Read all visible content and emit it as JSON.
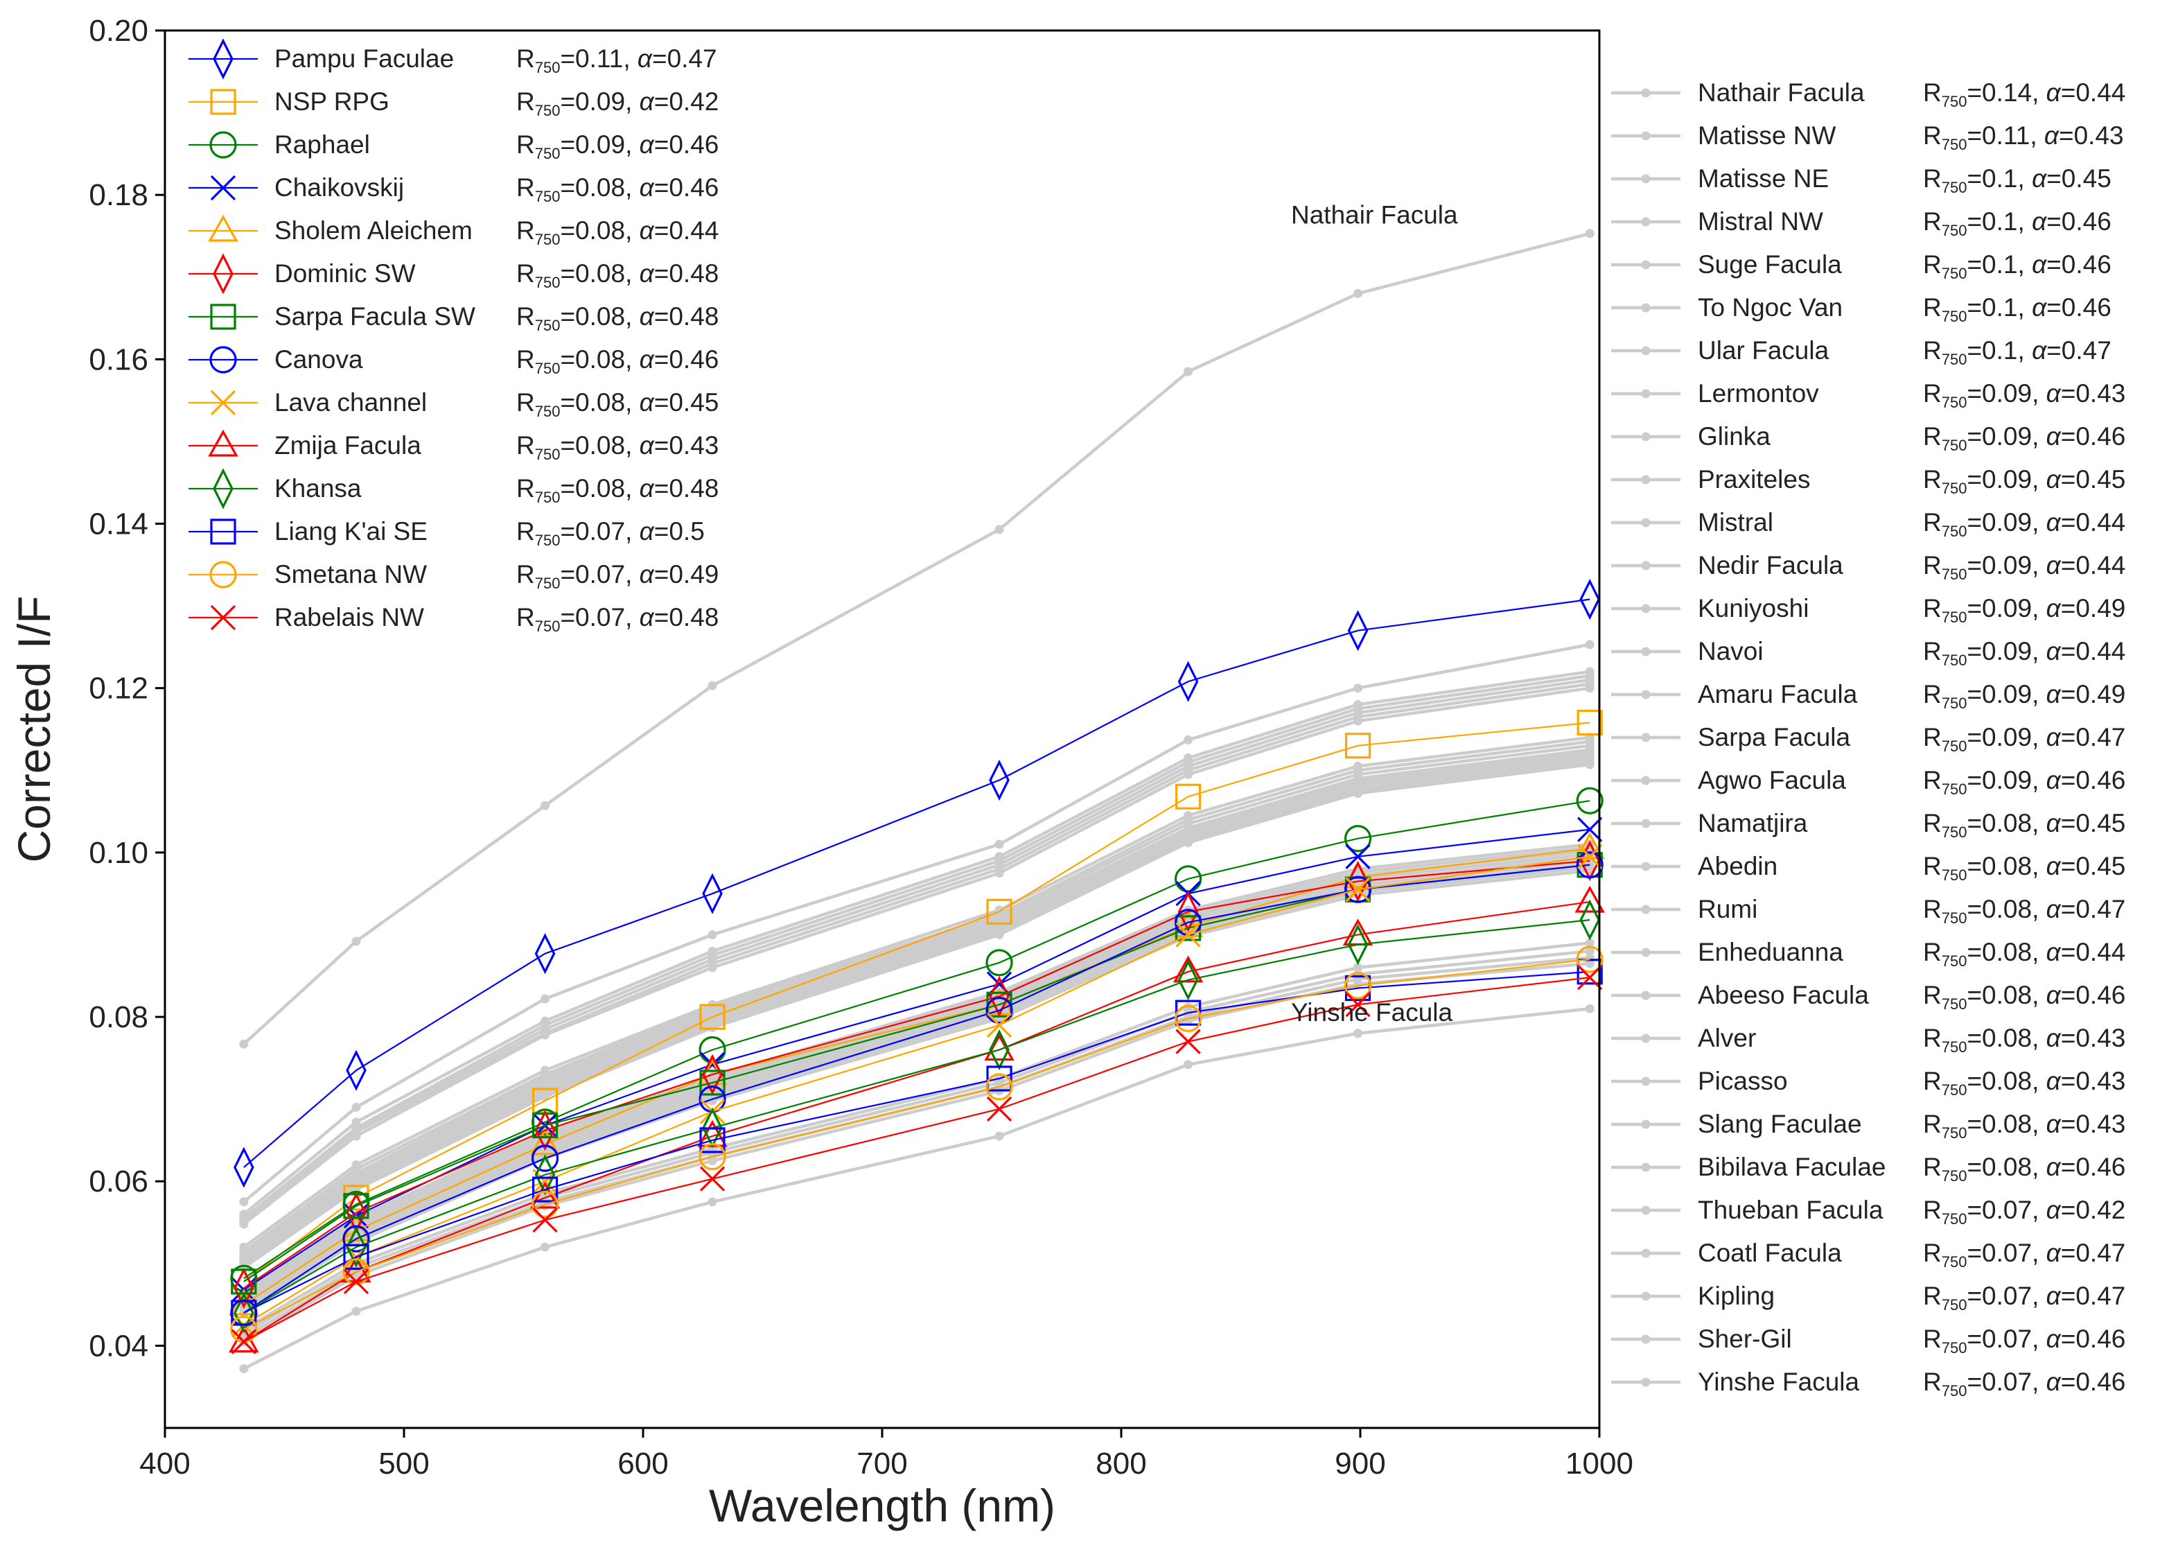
{
  "chart_data": {
    "type": "line",
    "title": "",
    "xlabel": "Wavelength (nm)",
    "ylabel": "Corrected I/F",
    "xlim": [
      400,
      1000
    ],
    "ylim": [
      0.03,
      0.2
    ],
    "x": [
      433,
      480,
      559,
      629,
      749,
      828,
      899,
      996
    ],
    "xticks": [
      "400",
      "500",
      "600",
      "700",
      "800",
      "900",
      "1000"
    ],
    "yticks": [
      "0.04",
      "0.06",
      "0.08",
      "0.10",
      "0.12",
      "0.14",
      "0.16",
      "0.18",
      "0.20"
    ],
    "ref_param_text": "R750=",
    "alpha_text": "α=",
    "annotations": [
      {
        "text": "Nathair Facula",
        "x": 900,
        "y": 0.1765
      },
      {
        "text": "Yinshe Facula",
        "x": 900,
        "y": 0.0795
      }
    ],
    "series": [
      {
        "name": "Pampu Faculae",
        "r750": "0.11",
        "alpha": "0.47",
        "color": "#0000ff",
        "marker": "diamond",
        "values": [
          0.0617,
          0.0735,
          0.0877,
          0.095,
          0.1088,
          0.1208,
          0.127,
          0.1308
        ]
      },
      {
        "name": "NSP RPG",
        "r750": "0.09",
        "alpha": "0.42",
        "color": "#ffa500",
        "marker": "square",
        "values": [
          0.0478,
          0.058,
          0.0698,
          0.08,
          0.0928,
          0.1068,
          0.113,
          0.1158
        ]
      },
      {
        "name": "Raphael",
        "r750": "0.09",
        "alpha": "0.46",
        "color": "#008000",
        "marker": "circle",
        "values": [
          0.0482,
          0.0572,
          0.0672,
          0.076,
          0.0866,
          0.0968,
          0.1017,
          0.1063
        ]
      },
      {
        "name": "Chaikovskij",
        "r750": "0.08",
        "alpha": "0.46",
        "color": "#0000ff",
        "marker": "x",
        "values": [
          0.0468,
          0.0558,
          0.0668,
          0.0742,
          0.084,
          0.095,
          0.0995,
          0.1028
        ]
      },
      {
        "name": "Sholem Aleichem",
        "r750": "0.08",
        "alpha": "0.44",
        "color": "#ffa500",
        "marker": "triangle",
        "values": [
          0.045,
          0.054,
          0.0645,
          0.073,
          0.0815,
          0.091,
          0.097,
          0.1005
        ]
      },
      {
        "name": "Dominic SW",
        "r750": "0.08",
        "alpha": "0.48",
        "color": "#ff0000",
        "marker": "diamond",
        "values": [
          0.047,
          0.0562,
          0.0662,
          0.073,
          0.0825,
          0.0928,
          0.0965,
          0.099
        ]
      },
      {
        "name": "Sarpa Facula SW",
        "r750": "0.08",
        "alpha": "0.48",
        "color": "#008000",
        "marker": "square",
        "values": [
          0.0478,
          0.057,
          0.0668,
          0.072,
          0.0815,
          0.0908,
          0.0955,
          0.0985
        ]
      },
      {
        "name": "Canova",
        "r750": "0.08",
        "alpha": "0.46",
        "color": "#0000ff",
        "marker": "circle",
        "values": [
          0.044,
          0.053,
          0.0628,
          0.07,
          0.0808,
          0.0915,
          0.0955,
          0.0985
        ]
      },
      {
        "name": "Lava channel",
        "r750": "0.08",
        "alpha": "0.45",
        "color": "#ffa500",
        "marker": "x",
        "values": [
          0.0425,
          0.0508,
          0.06,
          0.0685,
          0.079,
          0.09,
          0.0955,
          0.0995
        ]
      },
      {
        "name": "Zmija Facula",
        "r750": "0.08",
        "alpha": "0.43",
        "color": "#ff0000",
        "marker": "triangle",
        "values": [
          0.0405,
          0.049,
          0.058,
          0.0655,
          0.076,
          0.0855,
          0.09,
          0.094
        ]
      },
      {
        "name": "Khansa",
        "r750": "0.08",
        "alpha": "0.48",
        "color": "#008000",
        "marker": "diamond",
        "values": [
          0.044,
          0.052,
          0.0608,
          0.0665,
          0.076,
          0.0845,
          0.0888,
          0.0918
        ]
      },
      {
        "name": "Liang K'ai SE",
        "r750": "0.07",
        "alpha": "0.5",
        "color": "#0000ff",
        "marker": "square",
        "values": [
          0.044,
          0.0508,
          0.059,
          0.065,
          0.0725,
          0.0805,
          0.0835,
          0.0855
        ]
      },
      {
        "name": "Smetana NW",
        "r750": "0.07",
        "alpha": "0.49",
        "color": "#ffa500",
        "marker": "circle",
        "values": [
          0.042,
          0.049,
          0.0572,
          0.063,
          0.0715,
          0.0798,
          0.0838,
          0.087
        ]
      },
      {
        "name": "Rabelais NW",
        "r750": "0.07",
        "alpha": "0.48",
        "color": "#ff0000",
        "marker": "x",
        "values": [
          0.0405,
          0.0478,
          0.0553,
          0.0603,
          0.0688,
          0.077,
          0.0815,
          0.0848
        ]
      }
    ],
    "gray_series": [
      {
        "name": "Nathair Facula",
        "r750": "0.14",
        "alpha": "0.44",
        "color": "#cccccc",
        "values": [
          0.0767,
          0.0892,
          0.1057,
          0.1203,
          0.1393,
          0.1585,
          0.168,
          0.1753
        ]
      },
      {
        "name": "Matisse NW",
        "r750": "0.11",
        "alpha": "0.43",
        "color": "#cccccc",
        "values": [
          0.0575,
          0.069,
          0.0822,
          0.09,
          0.101,
          0.1137,
          0.12,
          0.1253
        ]
      },
      {
        "name": "Matisse NE",
        "r750": "0.1",
        "alpha": "0.45",
        "color": "#cccccc",
        "values": [
          0.056,
          0.0672,
          0.0795,
          0.088,
          0.0995,
          0.1115,
          0.118,
          0.122
        ]
      },
      {
        "name": "Mistral NW",
        "r750": "0.1",
        "alpha": "0.46",
        "color": "#cccccc",
        "values": [
          0.0555,
          0.0665,
          0.079,
          0.0875,
          0.099,
          0.111,
          0.1175,
          0.1215
        ]
      },
      {
        "name": "Suge Facula",
        "r750": "0.1",
        "alpha": "0.46",
        "color": "#cccccc",
        "values": [
          0.0552,
          0.0662,
          0.0785,
          0.087,
          0.0985,
          0.1105,
          0.117,
          0.121
        ]
      },
      {
        "name": "To Ngoc Van",
        "r750": "0.1",
        "alpha": "0.46",
        "color": "#cccccc",
        "values": [
          0.055,
          0.066,
          0.078,
          0.0865,
          0.098,
          0.11,
          0.1165,
          0.1205
        ]
      },
      {
        "name": "Ular Facula",
        "r750": "0.1",
        "alpha": "0.47",
        "color": "#cccccc",
        "values": [
          0.0548,
          0.0655,
          0.0778,
          0.086,
          0.0975,
          0.1095,
          0.116,
          0.12
        ]
      },
      {
        "name": "Lermontov",
        "r750": "0.09",
        "alpha": "0.43",
        "color": "#cccccc",
        "values": [
          0.052,
          0.062,
          0.0735,
          0.0815,
          0.093,
          0.1045,
          0.1105,
          0.114
        ]
      },
      {
        "name": "Glinka",
        "r750": "0.09",
        "alpha": "0.46",
        "color": "#cccccc",
        "values": [
          0.0515,
          0.0615,
          0.073,
          0.0812,
          0.0925,
          0.104,
          0.11,
          0.1135
        ]
      },
      {
        "name": "Praxiteles",
        "r750": "0.09",
        "alpha": "0.45",
        "color": "#cccccc",
        "values": [
          0.0512,
          0.061,
          0.0727,
          0.0808,
          0.0922,
          0.1035,
          0.1095,
          0.113
        ]
      },
      {
        "name": "Mistral",
        "r750": "0.09",
        "alpha": "0.44",
        "color": "#cccccc",
        "values": [
          0.051,
          0.0607,
          0.0723,
          0.0805,
          0.0918,
          0.103,
          0.109,
          0.1125
        ]
      },
      {
        "name": "Nedir Facula",
        "r750": "0.09",
        "alpha": "0.44",
        "color": "#cccccc",
        "values": [
          0.0508,
          0.0604,
          0.072,
          0.0802,
          0.0915,
          0.1028,
          0.1088,
          0.1122
        ]
      },
      {
        "name": "Kuniyoshi",
        "r750": "0.09",
        "alpha": "0.49",
        "color": "#cccccc",
        "values": [
          0.0505,
          0.06,
          0.0717,
          0.08,
          0.0912,
          0.1025,
          0.1085,
          0.112
        ]
      },
      {
        "name": "Navoi",
        "r750": "0.09",
        "alpha": "0.44",
        "color": "#cccccc",
        "values": [
          0.0503,
          0.0598,
          0.0714,
          0.0797,
          0.091,
          0.1022,
          0.1082,
          0.1117
        ]
      },
      {
        "name": "Amaru Facula",
        "r750": "0.09",
        "alpha": "0.49",
        "color": "#cccccc",
        "values": [
          0.05,
          0.0595,
          0.071,
          0.0794,
          0.0906,
          0.1018,
          0.1078,
          0.1114
        ]
      },
      {
        "name": "Sarpa Facula",
        "r750": "0.09",
        "alpha": "0.47",
        "color": "#cccccc",
        "values": [
          0.0498,
          0.0592,
          0.0707,
          0.079,
          0.0903,
          0.1015,
          0.1075,
          0.111
        ]
      },
      {
        "name": "Agwo Facula",
        "r750": "0.09",
        "alpha": "0.46",
        "color": "#cccccc",
        "values": [
          0.0495,
          0.059,
          0.0703,
          0.0787,
          0.09,
          0.1012,
          0.1072,
          0.1107
        ]
      },
      {
        "name": "Namatjira",
        "r750": "0.08",
        "alpha": "0.45",
        "color": "#cccccc",
        "values": [
          0.0465,
          0.0555,
          0.066,
          0.0728,
          0.083,
          0.093,
          0.098,
          0.101
        ]
      },
      {
        "name": "Abedin",
        "r750": "0.08",
        "alpha": "0.45",
        "color": "#cccccc",
        "values": [
          0.0462,
          0.0552,
          0.0656,
          0.0725,
          0.0826,
          0.0926,
          0.0976,
          0.1006
        ]
      },
      {
        "name": "Rumi",
        "r750": "0.08",
        "alpha": "0.47",
        "color": "#cccccc",
        "values": [
          0.046,
          0.0548,
          0.0652,
          0.0722,
          0.0822,
          0.0922,
          0.0972,
          0.1002
        ]
      },
      {
        "name": "Enheduanna",
        "r750": "0.08",
        "alpha": "0.44",
        "color": "#cccccc",
        "values": [
          0.0456,
          0.0544,
          0.0648,
          0.0718,
          0.0818,
          0.0918,
          0.0968,
          0.0998
        ]
      },
      {
        "name": "Abeeso Facula",
        "r750": "0.08",
        "alpha": "0.46",
        "color": "#cccccc",
        "values": [
          0.0453,
          0.054,
          0.0644,
          0.0714,
          0.0814,
          0.0914,
          0.0964,
          0.0994
        ]
      },
      {
        "name": "Alver",
        "r750": "0.08",
        "alpha": "0.43",
        "color": "#cccccc",
        "values": [
          0.045,
          0.0536,
          0.064,
          0.071,
          0.081,
          0.091,
          0.096,
          0.099
        ]
      },
      {
        "name": "Picasso",
        "r750": "0.08",
        "alpha": "0.43",
        "color": "#cccccc",
        "values": [
          0.0447,
          0.0533,
          0.0636,
          0.0706,
          0.0806,
          0.0906,
          0.0956,
          0.0986
        ]
      },
      {
        "name": "Slang Faculae",
        "r750": "0.08",
        "alpha": "0.43",
        "color": "#cccccc",
        "values": [
          0.0444,
          0.053,
          0.0632,
          0.0702,
          0.0802,
          0.0902,
          0.0952,
          0.0982
        ]
      },
      {
        "name": "Bibilava Faculae",
        "r750": "0.08",
        "alpha": "0.46",
        "color": "#cccccc",
        "values": [
          0.0441,
          0.0526,
          0.0628,
          0.0698,
          0.0798,
          0.0898,
          0.0948,
          0.0978
        ]
      },
      {
        "name": "Thueban Facula",
        "r750": "0.07",
        "alpha": "0.42",
        "color": "#cccccc",
        "values": [
          0.042,
          0.05,
          0.0585,
          0.064,
          0.0725,
          0.0812,
          0.086,
          0.089
        ]
      },
      {
        "name": "Coatl Facula",
        "r750": "0.07",
        "alpha": "0.47",
        "color": "#cccccc",
        "values": [
          0.0415,
          0.0495,
          0.058,
          0.0635,
          0.072,
          0.0806,
          0.0852,
          0.088
        ]
      },
      {
        "name": "Kipling",
        "r750": "0.07",
        "alpha": "0.47",
        "color": "#cccccc",
        "values": [
          0.041,
          0.049,
          0.0575,
          0.063,
          0.0715,
          0.08,
          0.0846,
          0.0872
        ]
      },
      {
        "name": "Sher-Gil",
        "r750": "0.07",
        "alpha": "0.46",
        "color": "#cccccc",
        "values": [
          0.0405,
          0.0485,
          0.057,
          0.0625,
          0.071,
          0.0795,
          0.084,
          0.0865
        ]
      },
      {
        "name": "Yinshe Facula",
        "r750": "0.07",
        "alpha": "0.46",
        "color": "#cccccc",
        "values": [
          0.0372,
          0.0442,
          0.052,
          0.0575,
          0.0655,
          0.0742,
          0.078,
          0.081
        ]
      }
    ]
  }
}
